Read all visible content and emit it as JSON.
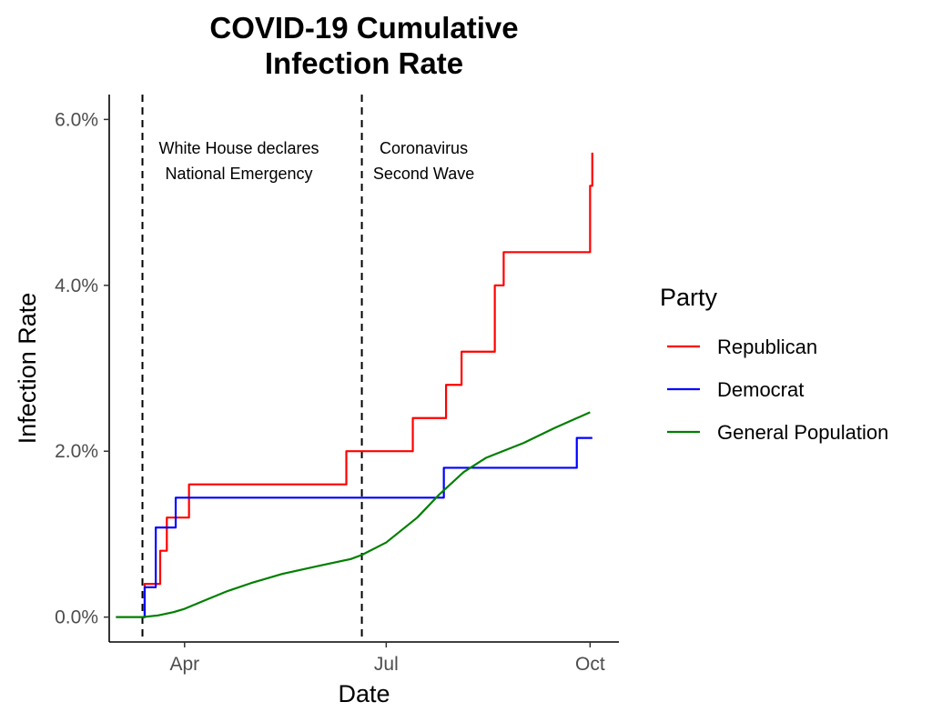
{
  "chart_data": {
    "type": "line",
    "title_lines": [
      "COVID-19 Cumulative",
      "Infection Rate"
    ],
    "xlabel": "Date",
    "ylabel": "Infection Rate",
    "x_ticks": [
      {
        "date": "2020-04-01",
        "label": "Apr"
      },
      {
        "date": "2020-07-01",
        "label": "Jul"
      },
      {
        "date": "2020-10-01",
        "label": "Oct"
      }
    ],
    "y_ticks": [
      {
        "value": 0.0,
        "label": "0.0%"
      },
      {
        "value": 2.0,
        "label": "2.0%"
      },
      {
        "value": 4.0,
        "label": "4.0%"
      },
      {
        "value": 6.0,
        "label": "6.0%"
      }
    ],
    "xlim": [
      "2020-02-27",
      "2020-10-14"
    ],
    "ylim": [
      -0.3,
      6.3
    ],
    "grid": false,
    "legend": {
      "title": "Party",
      "position": "right",
      "entries": [
        {
          "label": "Republican",
          "color": "#ff0000"
        },
        {
          "label": "Democrat",
          "color": "#0000ff"
        },
        {
          "label": "General Population",
          "color": "#007f00"
        }
      ]
    },
    "vlines": [
      {
        "date": "2020-03-13",
        "label_lines": [
          "White House declares",
          "National Emergency"
        ]
      },
      {
        "date": "2020-06-20",
        "label_lines": [
          "Coronavirus",
          "Second Wave"
        ]
      }
    ],
    "series": [
      {
        "name": "Republican",
        "color": "#ff0000",
        "step": true,
        "points": [
          [
            "2020-03-13",
            0.0
          ],
          [
            "2020-03-14",
            0.4
          ],
          [
            "2020-03-21",
            0.8
          ],
          [
            "2020-03-24",
            1.2
          ],
          [
            "2020-04-03",
            1.6
          ],
          [
            "2020-06-13",
            2.0
          ],
          [
            "2020-07-13",
            2.4
          ],
          [
            "2020-07-28",
            2.8
          ],
          [
            "2020-08-04",
            3.2
          ],
          [
            "2020-08-19",
            4.0
          ],
          [
            "2020-08-23",
            4.4
          ],
          [
            "2020-10-01",
            5.2
          ],
          [
            "2020-10-02",
            5.6
          ]
        ]
      },
      {
        "name": "Democrat",
        "color": "#0000ff",
        "step": true,
        "points": [
          [
            "2020-03-13",
            0.0
          ],
          [
            "2020-03-14",
            0.36
          ],
          [
            "2020-03-19",
            1.08
          ],
          [
            "2020-03-28",
            1.44
          ],
          [
            "2020-07-27",
            1.8
          ],
          [
            "2020-09-25",
            2.16
          ],
          [
            "2020-10-02",
            2.16
          ]
        ]
      },
      {
        "name": "General Population",
        "color": "#007f00",
        "step": false,
        "points": [
          [
            "2020-03-01",
            0.0
          ],
          [
            "2020-03-13",
            0.0
          ],
          [
            "2020-03-20",
            0.02
          ],
          [
            "2020-03-27",
            0.06
          ],
          [
            "2020-04-01",
            0.1
          ],
          [
            "2020-04-10",
            0.2
          ],
          [
            "2020-04-20",
            0.31
          ],
          [
            "2020-05-01",
            0.41
          ],
          [
            "2020-05-15",
            0.52
          ],
          [
            "2020-06-01",
            0.62
          ],
          [
            "2020-06-15",
            0.7
          ],
          [
            "2020-06-20",
            0.75
          ],
          [
            "2020-07-01",
            0.9
          ],
          [
            "2020-07-15",
            1.2
          ],
          [
            "2020-07-25",
            1.48
          ],
          [
            "2020-08-05",
            1.75
          ],
          [
            "2020-08-15",
            1.92
          ],
          [
            "2020-09-01",
            2.1
          ],
          [
            "2020-09-15",
            2.28
          ],
          [
            "2020-10-01",
            2.47
          ]
        ]
      }
    ]
  }
}
